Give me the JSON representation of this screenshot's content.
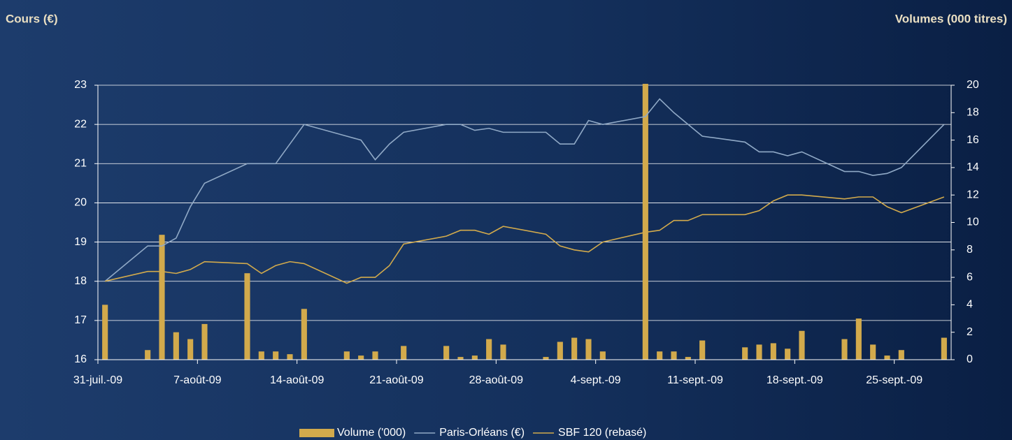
{
  "chart_data": {
    "type": "bar",
    "title_left": "Cours (€)",
    "title_right": "Volumes (000 titres)",
    "x": [
      "2009-07-31",
      "2009-08-03",
      "2009-08-04",
      "2009-08-05",
      "2009-08-06",
      "2009-08-07",
      "2009-08-10",
      "2009-08-11",
      "2009-08-12",
      "2009-08-13",
      "2009-08-14",
      "2009-08-17",
      "2009-08-18",
      "2009-08-19",
      "2009-08-20",
      "2009-08-21",
      "2009-08-24",
      "2009-08-25",
      "2009-08-26",
      "2009-08-27",
      "2009-08-28",
      "2009-08-31",
      "2009-09-01",
      "2009-09-02",
      "2009-09-03",
      "2009-09-04",
      "2009-09-07",
      "2009-09-08",
      "2009-09-09",
      "2009-09-10",
      "2009-09-11",
      "2009-09-14",
      "2009-09-15",
      "2009-09-16",
      "2009-09-17",
      "2009-09-18",
      "2009-09-21",
      "2009-09-22",
      "2009-09-23",
      "2009-09-24",
      "2009-09-25",
      "2009-09-28"
    ],
    "xlim": [
      "2009-07-31",
      "2009-09-29"
    ],
    "xticks": [
      {
        "value": "2009-07-31",
        "label": "31-juil.-09"
      },
      {
        "value": "2009-08-07",
        "label": "7-août-09"
      },
      {
        "value": "2009-08-14",
        "label": "14-août-09"
      },
      {
        "value": "2009-08-21",
        "label": "21-août-09"
      },
      {
        "value": "2009-08-28",
        "label": "28-août-09"
      },
      {
        "value": "2009-09-04",
        "label": "4-sept.-09"
      },
      {
        "value": "2009-09-11",
        "label": "11-sept.-09"
      },
      {
        "value": "2009-09-18",
        "label": "18-sept.-09"
      },
      {
        "value": "2009-09-25",
        "label": "25-sept.-09"
      }
    ],
    "ylim": [
      16,
      23
    ],
    "yticks": [
      16,
      17,
      18,
      19,
      20,
      21,
      22,
      23
    ],
    "y2lim": [
      0,
      20
    ],
    "y2ticks": [
      0,
      2,
      4,
      6,
      8,
      10,
      12,
      14,
      16,
      18,
      20
    ],
    "grid": true,
    "series": [
      {
        "name": "Volume ('000)",
        "type": "bar",
        "axis": "y2",
        "color": "#d2aa4c",
        "values": [
          4.0,
          0.7,
          9.1,
          2.0,
          1.5,
          2.6,
          6.3,
          0.6,
          0.6,
          0.4,
          3.7,
          0.6,
          0.3,
          0.6,
          0,
          1.0,
          1.0,
          0.2,
          0.3,
          1.5,
          1.1,
          0.2,
          1.3,
          1.6,
          1.5,
          0.6,
          20.1,
          0.6,
          0.6,
          0.2,
          1.4,
          0.9,
          1.1,
          1.2,
          0.8,
          2.1,
          1.5,
          3.0,
          1.1,
          0.3,
          0.7,
          1.6
        ]
      },
      {
        "name": "Paris-Orléans (€)",
        "type": "line",
        "axis": "y",
        "color": "#90a9c6",
        "values": [
          18.0,
          18.9,
          18.9,
          19.1,
          19.9,
          20.5,
          21.0,
          21.0,
          21.0,
          21.5,
          22.0,
          21.7,
          21.6,
          21.1,
          21.5,
          21.8,
          22.0,
          22.0,
          21.85,
          21.9,
          21.8,
          21.8,
          21.5,
          21.5,
          22.1,
          22.0,
          22.2,
          22.65,
          22.3,
          22.0,
          21.7,
          21.55,
          21.3,
          21.3,
          21.2,
          21.3,
          20.8,
          20.8,
          20.7,
          20.75,
          20.9,
          22.0
        ]
      },
      {
        "name": "SBF 120 (rebasé)",
        "type": "line",
        "axis": "y",
        "color": "#d2aa4c",
        "values": [
          18.0,
          18.25,
          18.25,
          18.2,
          18.3,
          18.5,
          18.45,
          18.2,
          18.4,
          18.5,
          18.45,
          17.95,
          18.1,
          18.1,
          18.4,
          18.95,
          19.15,
          19.3,
          19.3,
          19.2,
          19.4,
          19.2,
          18.9,
          18.8,
          18.75,
          19.0,
          19.25,
          19.3,
          19.55,
          19.55,
          19.7,
          19.7,
          19.8,
          20.05,
          20.2,
          20.2,
          20.1,
          20.15,
          20.15,
          19.9,
          19.75,
          20.15
        ]
      }
    ],
    "legend": "bottom"
  }
}
